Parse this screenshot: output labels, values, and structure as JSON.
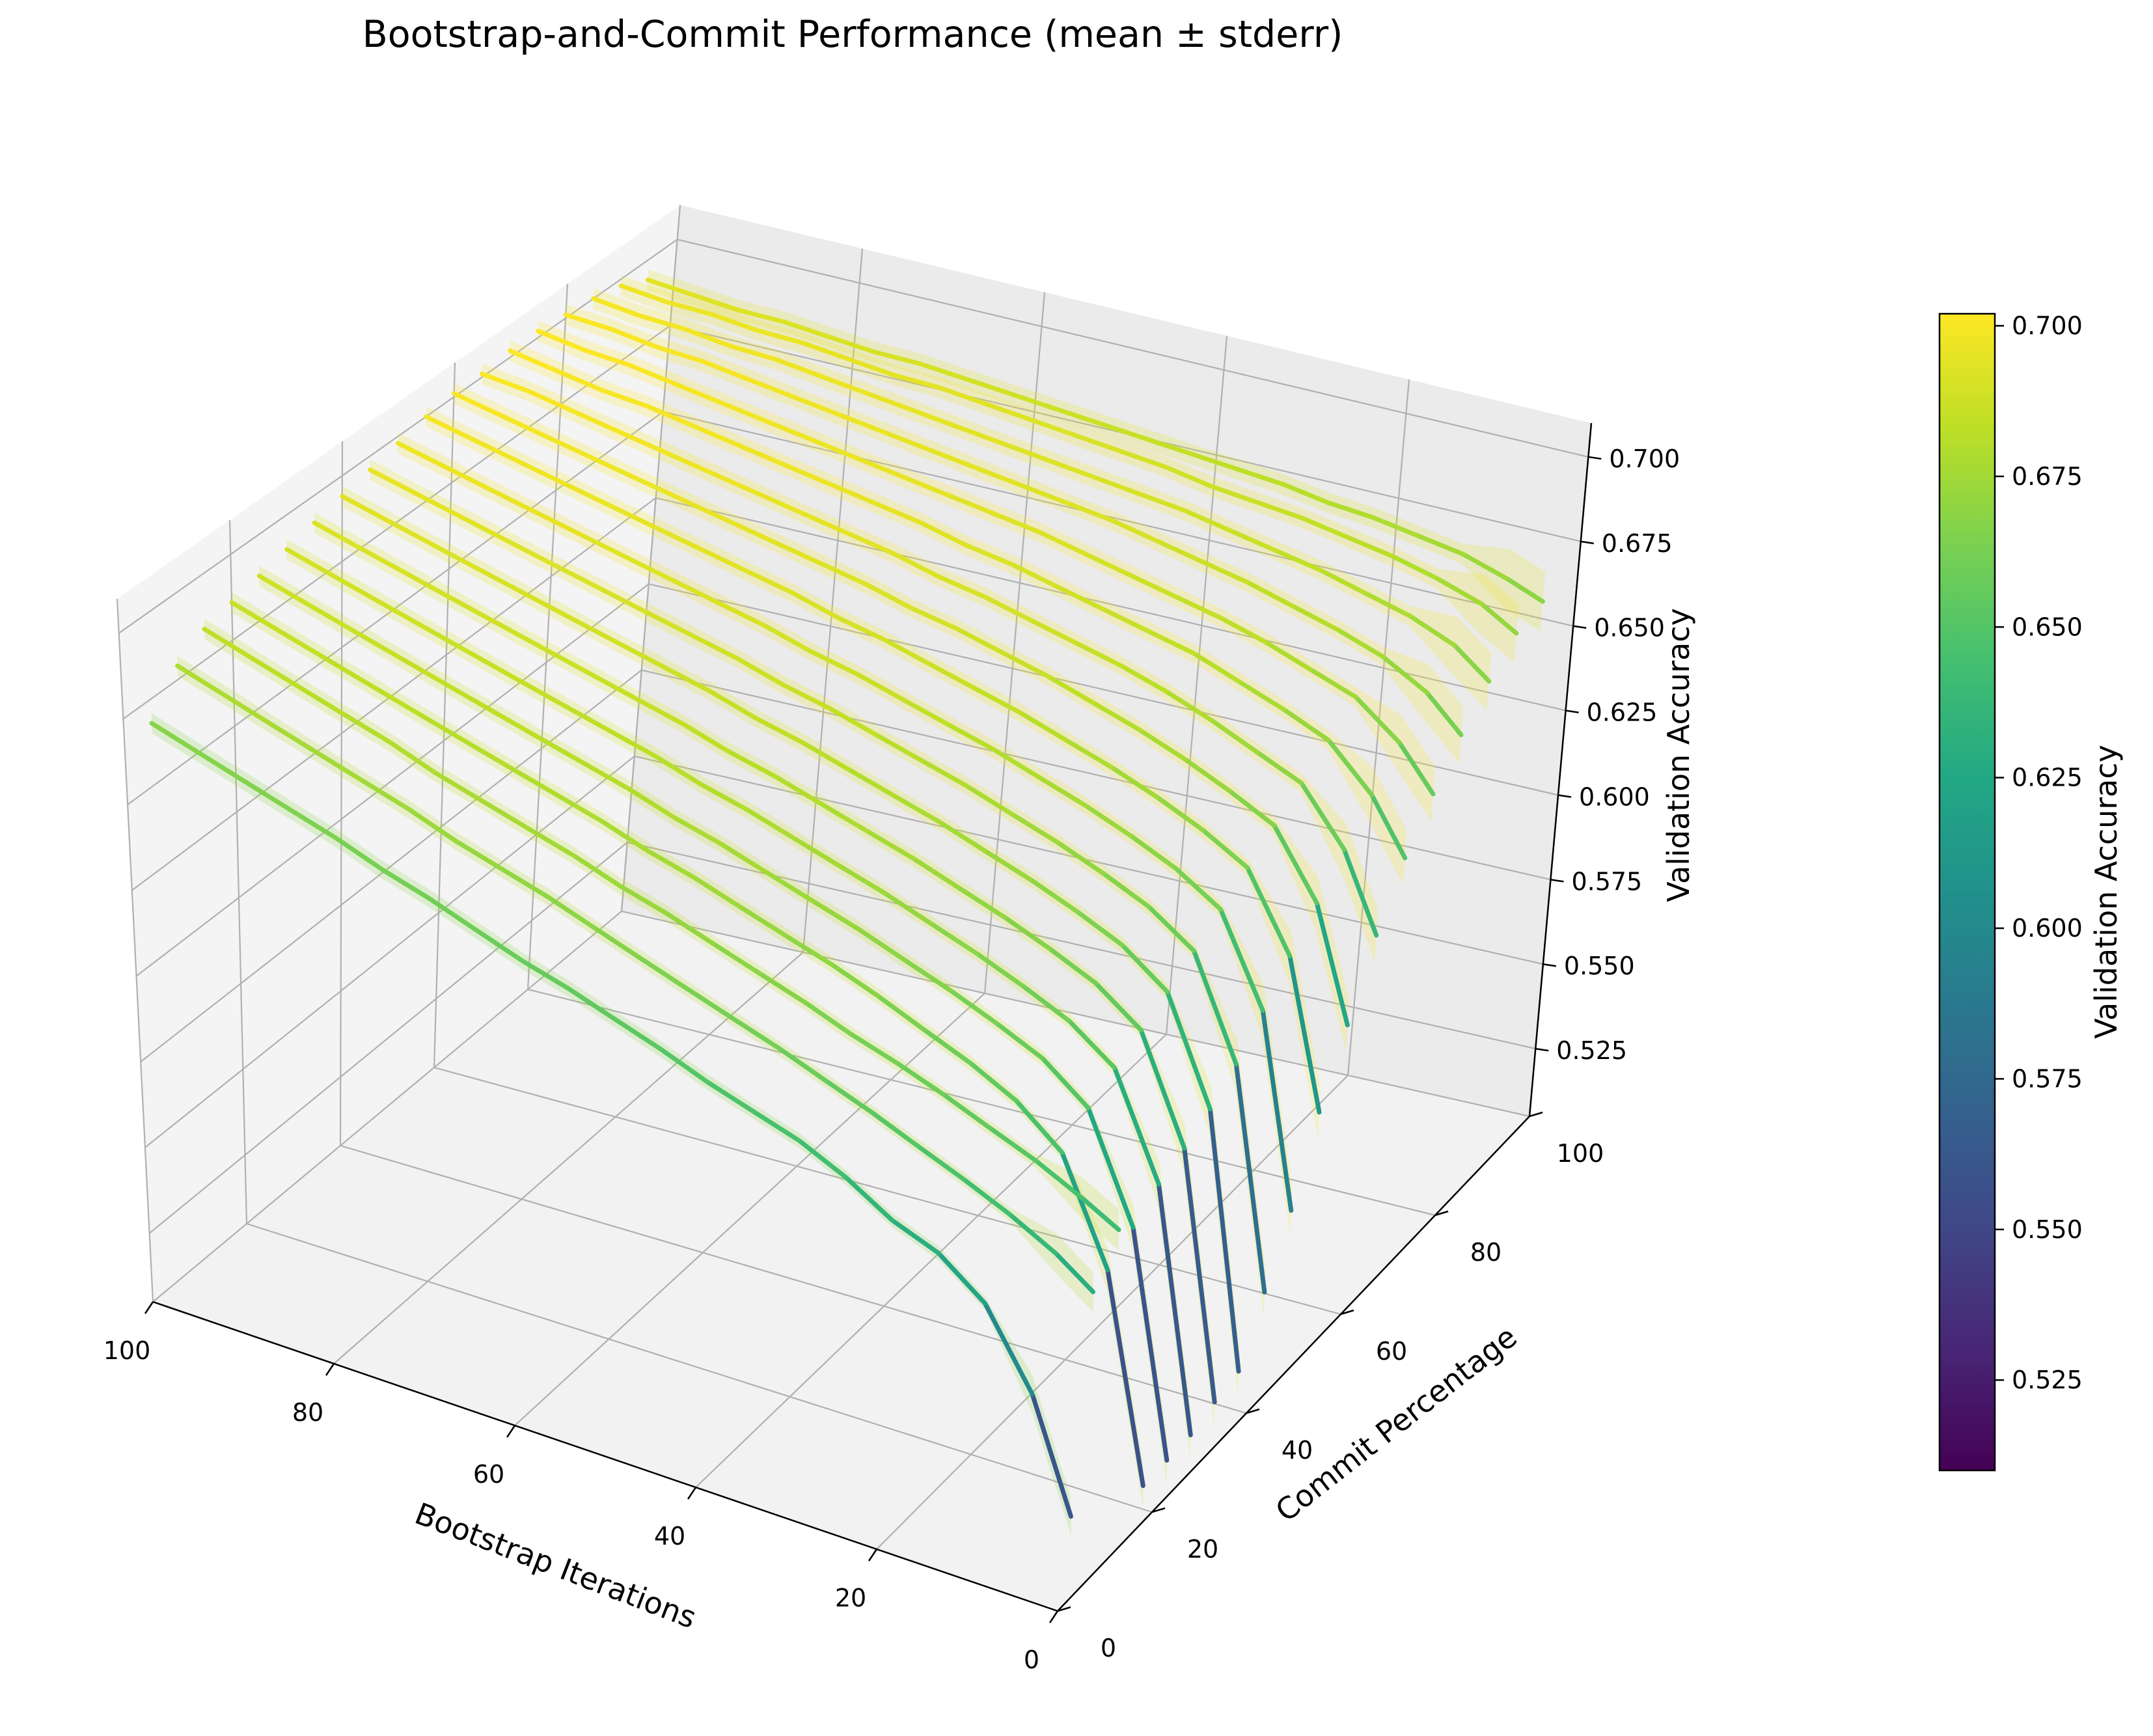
{
  "chart_data": {
    "type": "line",
    "projection": "3d",
    "title": "Bootstrap-and-Commit Performance (mean ± stderr)",
    "xlabel": "Bootstrap Iterations",
    "ylabel": "Commit Percentage",
    "zlabel": "Validation Accuracy",
    "colorbar_label": "Validation Accuracy",
    "colormap": "viridis",
    "xlim": [
      0,
      100
    ],
    "ylim": [
      0,
      100
    ],
    "zlim": [
      0.505,
      0.71
    ],
    "colorbar_range": [
      0.51,
      0.702
    ],
    "x_ticks": [
      "100",
      "80",
      "60",
      "40",
      "20",
      "0"
    ],
    "x_tick_values": [
      100,
      80,
      60,
      40,
      20,
      0
    ],
    "y_ticks": [
      "0",
      "20",
      "40",
      "60",
      "80",
      "100"
    ],
    "y_tick_values": [
      0,
      20,
      40,
      60,
      80,
      100
    ],
    "z_ticks": [
      "0.525",
      "0.550",
      "0.575",
      "0.600",
      "0.625",
      "0.650",
      "0.675",
      "0.700"
    ],
    "z_tick_values": [
      0.525,
      0.55,
      0.575,
      0.6,
      0.625,
      0.65,
      0.675,
      0.7
    ],
    "colorbar_ticks": [
      "0.525",
      "0.550",
      "0.575",
      "0.600",
      "0.625",
      "0.650",
      "0.675",
      "0.700"
    ],
    "colorbar_tick_values": [
      0.525,
      0.55,
      0.575,
      0.6,
      0.625,
      0.65,
      0.675,
      0.7
    ],
    "grid": true,
    "shaded_band": "stderr",
    "series_description": "One curve per commit percentage; accuracy vs bootstrap iterations, colored by accuracy",
    "commit_percentages": [
      5,
      10,
      15,
      20,
      25,
      30,
      35,
      40,
      45,
      50,
      55,
      60,
      65,
      70,
      75,
      80,
      85,
      90,
      95
    ],
    "bootstrap_iterations": [
      1,
      5,
      10,
      15,
      20,
      25,
      30,
      35,
      40,
      45,
      50,
      55,
      60,
      65,
      70,
      75,
      80,
      85,
      90,
      95,
      100
    ],
    "accuracy": [
      [
        0.536,
        0.585,
        0.616,
        0.628,
        0.632,
        0.64,
        0.645,
        0.647,
        0.649,
        0.652,
        0.654,
        0.656,
        0.657,
        0.659,
        0.661,
        0.662,
        0.664,
        0.665,
        0.666,
        0.667,
        0.668
      ],
      [
        0.625,
        0.634,
        0.641,
        0.646,
        0.65,
        0.654,
        0.657,
        0.66,
        0.662,
        0.664,
        0.666,
        0.668,
        0.67,
        0.671,
        0.672,
        0.674,
        0.675,
        0.676,
        0.677,
        0.678,
        0.679
      ],
      [
        0.638,
        0.644,
        0.65,
        0.654,
        0.658,
        0.661,
        0.663,
        0.666,
        0.668,
        0.67,
        0.672,
        0.673,
        0.675,
        0.676,
        0.677,
        0.678,
        0.68,
        0.681,
        0.682,
        0.683,
        0.684
      ],
      [
        0.515,
        0.6,
        0.64,
        0.652,
        0.658,
        0.662,
        0.666,
        0.669,
        0.671,
        0.673,
        0.675,
        0.676,
        0.678,
        0.679,
        0.68,
        0.681,
        0.682,
        0.683,
        0.684,
        0.685,
        0.686
      ],
      [
        0.515,
        0.605,
        0.645,
        0.656,
        0.661,
        0.665,
        0.668,
        0.671,
        0.673,
        0.675,
        0.677,
        0.678,
        0.68,
        0.681,
        0.682,
        0.683,
        0.684,
        0.685,
        0.686,
        0.687,
        0.688
      ],
      [
        0.515,
        0.61,
        0.648,
        0.658,
        0.663,
        0.667,
        0.67,
        0.673,
        0.675,
        0.677,
        0.679,
        0.68,
        0.682,
        0.683,
        0.684,
        0.685,
        0.686,
        0.687,
        0.688,
        0.689,
        0.69
      ],
      [
        0.518,
        0.612,
        0.65,
        0.66,
        0.665,
        0.669,
        0.672,
        0.675,
        0.677,
        0.679,
        0.681,
        0.682,
        0.684,
        0.685,
        0.686,
        0.687,
        0.688,
        0.689,
        0.69,
        0.691,
        0.692
      ],
      [
        0.52,
        0.615,
        0.652,
        0.662,
        0.667,
        0.671,
        0.674,
        0.677,
        0.679,
        0.681,
        0.683,
        0.684,
        0.686,
        0.687,
        0.688,
        0.689,
        0.69,
        0.691,
        0.692,
        0.693,
        0.694
      ],
      [
        0.54,
        0.62,
        0.655,
        0.664,
        0.669,
        0.673,
        0.676,
        0.679,
        0.681,
        0.683,
        0.685,
        0.686,
        0.688,
        0.689,
        0.69,
        0.691,
        0.692,
        0.693,
        0.694,
        0.695,
        0.696
      ],
      [
        0.56,
        0.628,
        0.658,
        0.666,
        0.671,
        0.675,
        0.678,
        0.681,
        0.683,
        0.685,
        0.687,
        0.688,
        0.69,
        0.691,
        0.692,
        0.693,
        0.694,
        0.695,
        0.696,
        0.697,
        0.698
      ],
      [
        0.585,
        0.636,
        0.661,
        0.668,
        0.673,
        0.677,
        0.68,
        0.683,
        0.685,
        0.687,
        0.689,
        0.69,
        0.692,
        0.693,
        0.694,
        0.695,
        0.696,
        0.697,
        0.698,
        0.699,
        0.7
      ],
      [
        0.605,
        0.643,
        0.664,
        0.67,
        0.675,
        0.679,
        0.682,
        0.685,
        0.687,
        0.689,
        0.69,
        0.692,
        0.693,
        0.694,
        0.695,
        0.696,
        0.697,
        0.698,
        0.699,
        0.7,
        0.701
      ],
      [
        0.625,
        0.65,
        0.667,
        0.672,
        0.677,
        0.681,
        0.684,
        0.686,
        0.688,
        0.69,
        0.691,
        0.693,
        0.694,
        0.695,
        0.696,
        0.697,
        0.698,
        0.699,
        0.7,
        0.701,
        0.701
      ],
      [
        0.64,
        0.657,
        0.67,
        0.675,
        0.679,
        0.683,
        0.685,
        0.687,
        0.689,
        0.691,
        0.692,
        0.694,
        0.695,
        0.696,
        0.697,
        0.698,
        0.699,
        0.7,
        0.7,
        0.701,
        0.702
      ],
      [
        0.65,
        0.663,
        0.673,
        0.677,
        0.681,
        0.684,
        0.686,
        0.688,
        0.69,
        0.692,
        0.693,
        0.694,
        0.695,
        0.696,
        0.697,
        0.698,
        0.699,
        0.7,
        0.701,
        0.701,
        0.702
      ],
      [
        0.658,
        0.668,
        0.675,
        0.679,
        0.682,
        0.685,
        0.687,
        0.689,
        0.691,
        0.692,
        0.693,
        0.694,
        0.695,
        0.696,
        0.697,
        0.698,
        0.699,
        0.7,
        0.7,
        0.701,
        0.701
      ],
      [
        0.664,
        0.672,
        0.677,
        0.68,
        0.683,
        0.685,
        0.687,
        0.689,
        0.69,
        0.691,
        0.692,
        0.693,
        0.694,
        0.695,
        0.696,
        0.697,
        0.698,
        0.698,
        0.699,
        0.699,
        0.7
      ],
      [
        0.668,
        0.674,
        0.678,
        0.681,
        0.683,
        0.685,
        0.686,
        0.687,
        0.689,
        0.69,
        0.691,
        0.692,
        0.693,
        0.694,
        0.694,
        0.695,
        0.696,
        0.696,
        0.697,
        0.697,
        0.698
      ],
      [
        0.667,
        0.671,
        0.675,
        0.677,
        0.679,
        0.68,
        0.682,
        0.683,
        0.684,
        0.685,
        0.686,
        0.687,
        0.688,
        0.689,
        0.69,
        0.69,
        0.691,
        0.692,
        0.692,
        0.693,
        0.694
      ]
    ]
  }
}
